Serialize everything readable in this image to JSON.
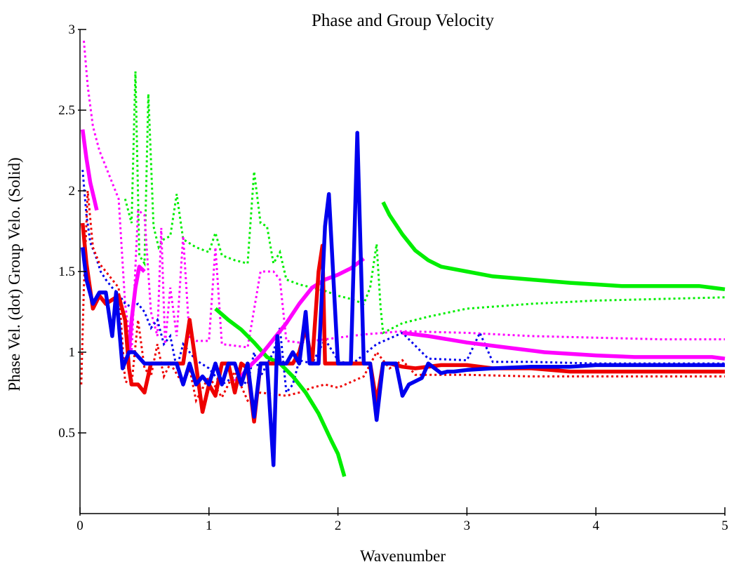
{
  "chart_data": {
    "type": "line",
    "title": "Phase and Group Velocity",
    "xlabel": "Wavenumber",
    "ylabel": "Phase Vel. (dot) Group Velo. (Solid)",
    "xlim": [
      0,
      5
    ],
    "ylim": [
      0,
      3
    ],
    "xticks": [
      0,
      1,
      2,
      3,
      4,
      5
    ],
    "yticks": [
      0.5,
      1,
      1.5,
      2,
      2.5,
      3
    ],
    "xtick_labels": [
      "0",
      "1",
      "2",
      "3",
      "4",
      "5"
    ],
    "ytick_labels": [
      "0.5",
      "1",
      "1.5",
      "2",
      "2.5",
      "3"
    ],
    "grid": false,
    "legend": "none",
    "series": [
      {
        "color": "#00ee00",
        "style": "dot",
        "x": [
          0.35,
          0.4,
          0.43,
          0.46,
          0.5,
          0.53,
          0.57,
          0.61,
          0.65,
          0.7,
          0.75,
          0.8,
          0.9,
          1.0,
          1.05,
          1.1,
          1.2,
          1.3,
          1.35,
          1.4,
          1.45,
          1.5,
          1.55,
          1.6,
          1.7,
          1.8,
          1.9,
          2.0,
          2.1,
          2.2,
          2.25,
          2.3,
          2.33,
          2.35,
          2.5,
          2.7,
          3.0,
          3.5,
          4.0,
          4.5,
          5.0
        ],
        "y": [
          1.95,
          1.8,
          2.74,
          1.6,
          1.55,
          2.6,
          1.78,
          1.65,
          1.7,
          1.72,
          1.98,
          1.7,
          1.65,
          1.62,
          1.74,
          1.6,
          1.57,
          1.55,
          2.12,
          1.8,
          1.78,
          1.55,
          1.62,
          1.45,
          1.42,
          1.4,
          1.38,
          1.35,
          1.33,
          1.3,
          1.4,
          1.67,
          1.28,
          1.12,
          1.18,
          1.22,
          1.27,
          1.3,
          1.32,
          1.33,
          1.34
        ]
      },
      {
        "color": "#ff00ff",
        "style": "dot",
        "x": [
          0.03,
          0.06,
          0.1,
          0.15,
          0.2,
          0.25,
          0.3,
          0.35,
          0.4,
          0.45,
          0.5,
          0.55,
          0.6,
          0.63,
          0.66,
          0.7,
          0.75,
          0.8,
          0.85,
          0.9,
          1.0,
          1.05,
          1.1,
          1.2,
          1.3,
          1.4,
          1.5,
          1.55,
          1.6,
          1.7,
          1.8,
          1.9,
          2.0,
          2.2,
          2.5,
          3.0,
          3.5,
          4.0,
          4.5,
          5.0
        ],
        "y": [
          2.93,
          2.65,
          2.4,
          2.25,
          2.15,
          2.05,
          1.95,
          1.3,
          1.0,
          1.88,
          1.85,
          1.25,
          1.1,
          1.77,
          1.05,
          1.4,
          1.1,
          1.72,
          1.08,
          1.07,
          1.07,
          1.65,
          1.05,
          1.04,
          1.03,
          1.5,
          1.5,
          1.45,
          1.07,
          1.06,
          1.07,
          1.08,
          1.09,
          1.11,
          1.13,
          1.12,
          1.1,
          1.09,
          1.08,
          1.08
        ]
      },
      {
        "color": "#0000ee",
        "style": "dot",
        "x": [
          0.02,
          0.05,
          0.08,
          0.12,
          0.16,
          0.2,
          0.25,
          0.3,
          0.35,
          0.4,
          0.45,
          0.5,
          0.55,
          0.6,
          0.65,
          0.7,
          0.75,
          0.8,
          0.9,
          1.0,
          1.1,
          1.2,
          1.3,
          1.35,
          1.4,
          1.5,
          1.55,
          1.6,
          1.65,
          1.7,
          1.8,
          1.9,
          2.0,
          2.1,
          2.3,
          2.5,
          2.7,
          3.0,
          3.1,
          3.2,
          3.5,
          4.0,
          4.5,
          5.0
        ],
        "y": [
          2.13,
          1.85,
          1.68,
          1.6,
          1.5,
          1.45,
          1.4,
          1.36,
          1.3,
          1.28,
          1.3,
          1.25,
          1.15,
          1.2,
          1.05,
          1.1,
          0.9,
          1.05,
          0.95,
          0.9,
          0.8,
          0.85,
          0.8,
          1.0,
          0.85,
          1.0,
          1.15,
          0.75,
          0.8,
          0.95,
          0.93,
          1.08,
          0.95,
          0.92,
          1.05,
          1.12,
          0.96,
          0.95,
          1.12,
          0.94,
          0.94,
          0.93,
          0.93,
          0.93
        ]
      },
      {
        "color": "#ee0000",
        "style": "dot",
        "x": [
          0.01,
          0.03,
          0.06,
          0.1,
          0.15,
          0.2,
          0.25,
          0.3,
          0.35,
          0.4,
          0.45,
          0.5,
          0.55,
          0.6,
          0.65,
          0.7,
          0.8,
          0.85,
          0.9,
          1.0,
          1.1,
          1.2,
          1.3,
          1.4,
          1.5,
          1.6,
          1.7,
          1.8,
          1.9,
          2.0,
          2.2,
          2.3,
          2.4,
          2.5,
          2.6,
          3.0,
          3.5,
          4.0,
          4.5,
          5.0
        ],
        "y": [
          0.8,
          1.4,
          2.0,
          1.65,
          1.55,
          1.5,
          1.45,
          1.4,
          0.82,
          0.8,
          1.2,
          0.9,
          0.85,
          1.05,
          0.85,
          0.93,
          0.8,
          0.9,
          0.7,
          0.85,
          0.72,
          0.88,
          0.7,
          0.75,
          0.74,
          0.73,
          0.75,
          0.78,
          0.8,
          0.78,
          0.85,
          1.0,
          0.9,
          0.95,
          0.86,
          0.86,
          0.85,
          0.85,
          0.85,
          0.85
        ]
      },
      {
        "color": "#00ee00",
        "style": "solid",
        "x": [
          1.05,
          1.15,
          1.25,
          1.35,
          1.45,
          1.55,
          1.65,
          1.75,
          1.85,
          1.95,
          2.0,
          2.05
        ],
        "y": [
          1.27,
          1.2,
          1.14,
          1.06,
          0.97,
          0.93,
          0.85,
          0.75,
          0.62,
          0.45,
          0.37,
          0.23
        ]
      },
      {
        "color": "#00ee00",
        "style": "solid",
        "x": [
          2.35,
          2.4,
          2.5,
          2.6,
          2.7,
          2.8,
          3.0,
          3.2,
          3.5,
          3.8,
          4.0,
          4.2,
          4.5,
          4.8,
          5.0
        ],
        "y": [
          1.93,
          1.85,
          1.73,
          1.63,
          1.57,
          1.53,
          1.5,
          1.47,
          1.45,
          1.43,
          1.42,
          1.41,
          1.41,
          1.41,
          1.39
        ]
      },
      {
        "color": "#ff00ff",
        "style": "solid",
        "x": [
          0.02,
          0.05,
          0.08,
          0.11,
          0.13
        ],
        "y": [
          2.38,
          2.2,
          2.05,
          1.95,
          1.88
        ]
      },
      {
        "color": "#ff00ff",
        "style": "solid",
        "x": [
          0.38,
          0.4,
          0.43,
          0.46,
          0.5
        ],
        "y": [
          1.0,
          1.2,
          1.4,
          1.53,
          1.5
        ]
      },
      {
        "color": "#ff00ff",
        "style": "solid",
        "x": [
          1.2,
          1.25,
          1.3,
          1.4,
          1.5,
          1.6,
          1.7,
          1.8,
          1.9,
          2.0,
          2.1,
          2.2
        ],
        "y": [
          0.82,
          0.85,
          0.9,
          0.98,
          1.08,
          1.18,
          1.3,
          1.4,
          1.45,
          1.48,
          1.52,
          1.58
        ]
      },
      {
        "color": "#ff00ff",
        "style": "solid",
        "x": [
          2.5,
          2.7,
          3.0,
          3.3,
          3.6,
          4.0,
          4.3,
          4.6,
          4.9,
          5.0
        ],
        "y": [
          1.12,
          1.1,
          1.06,
          1.03,
          1.0,
          0.98,
          0.97,
          0.97,
          0.97,
          0.96
        ]
      },
      {
        "color": "#ee0000",
        "style": "solid",
        "x": [
          0.02,
          0.05,
          0.1,
          0.15,
          0.2,
          0.3,
          0.35,
          0.38,
          0.4,
          0.45,
          0.5,
          0.55,
          0.6,
          0.7,
          0.8,
          0.85,
          0.9,
          0.95,
          1.0,
          1.05,
          1.1,
          1.15,
          1.2,
          1.25,
          1.3,
          1.35,
          1.4,
          1.45,
          1.5,
          1.55,
          1.6,
          1.65,
          1.7,
          1.75,
          1.8,
          1.85,
          1.88,
          1.9,
          1.95,
          2.0,
          2.1,
          2.2,
          2.25,
          2.3,
          2.35,
          2.4,
          2.5,
          2.6,
          2.8,
          3.0,
          3.2,
          3.5,
          3.8,
          4.0,
          4.5,
          5.0
        ],
        "y": [
          1.8,
          1.55,
          1.27,
          1.35,
          1.3,
          1.35,
          1.2,
          0.9,
          0.8,
          0.8,
          0.75,
          0.93,
          0.93,
          0.93,
          0.93,
          1.2,
          0.92,
          0.63,
          0.8,
          0.73,
          0.93,
          0.93,
          0.75,
          0.93,
          0.9,
          0.57,
          0.93,
          0.93,
          0.93,
          0.93,
          0.93,
          0.93,
          1.0,
          1.15,
          0.93,
          1.5,
          1.66,
          0.93,
          0.93,
          0.93,
          0.93,
          0.93,
          0.93,
          0.69,
          0.93,
          0.93,
          0.91,
          0.9,
          0.92,
          0.92,
          0.9,
          0.9,
          0.88,
          0.88,
          0.88,
          0.88
        ]
      },
      {
        "color": "#0000ee",
        "style": "solid",
        "x": [
          0.02,
          0.05,
          0.1,
          0.15,
          0.2,
          0.25,
          0.28,
          0.33,
          0.38,
          0.42,
          0.5,
          0.55,
          0.6,
          0.7,
          0.75,
          0.8,
          0.85,
          0.9,
          0.95,
          1.0,
          1.05,
          1.1,
          1.15,
          1.2,
          1.25,
          1.3,
          1.35,
          1.4,
          1.45,
          1.5,
          1.53,
          1.55,
          1.6,
          1.65,
          1.7,
          1.75,
          1.78,
          1.8,
          1.85,
          1.9,
          1.93,
          2.0,
          2.05,
          2.1,
          2.15,
          2.2,
          2.25,
          2.3,
          2.35,
          2.4,
          2.45,
          2.5,
          2.55,
          2.6,
          2.65,
          2.7,
          2.8,
          2.85,
          2.9,
          3.0,
          3.2,
          3.5,
          3.8,
          4.0,
          4.3,
          4.6,
          5.0
        ],
        "y": [
          1.65,
          1.45,
          1.3,
          1.37,
          1.37,
          1.1,
          1.37,
          0.9,
          1.0,
          1.0,
          0.93,
          0.93,
          0.93,
          0.93,
          0.93,
          0.8,
          0.93,
          0.8,
          0.85,
          0.8,
          0.93,
          0.8,
          0.93,
          0.93,
          0.8,
          0.93,
          0.6,
          0.93,
          0.93,
          0.3,
          1.1,
          0.93,
          0.93,
          1.0,
          0.93,
          1.25,
          0.93,
          0.93,
          0.93,
          1.78,
          1.98,
          0.93,
          0.93,
          0.93,
          2.36,
          0.93,
          0.93,
          0.58,
          0.93,
          0.93,
          0.93,
          0.73,
          0.8,
          0.82,
          0.84,
          0.93,
          0.87,
          0.88,
          0.88,
          0.89,
          0.9,
          0.91,
          0.91,
          0.92,
          0.92,
          0.92,
          0.92
        ]
      }
    ]
  }
}
